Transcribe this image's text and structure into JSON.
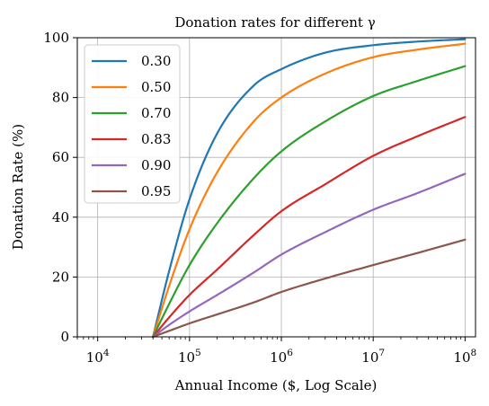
{
  "chart_data": {
    "type": "line",
    "title": "Donation rates for different γ",
    "xlabel": "Annual Income ($, Log Scale)",
    "ylabel": "Donation Rate (%)",
    "x_scale": "log",
    "xlim": [
      6000,
      130000000
    ],
    "ylim": [
      0,
      100
    ],
    "grid": true,
    "legend_position": "top-left",
    "x_ticks": [
      {
        "value": 10000,
        "base": "10",
        "exp": "4"
      },
      {
        "value": 100000,
        "base": "10",
        "exp": "5"
      },
      {
        "value": 1000000,
        "base": "10",
        "exp": "6"
      },
      {
        "value": 10000000,
        "base": "10",
        "exp": "7"
      },
      {
        "value": 100000000,
        "base": "10",
        "exp": "8"
      }
    ],
    "y_ticks": [
      0,
      20,
      40,
      60,
      80,
      100
    ],
    "y_tick_labels": [
      "0",
      "20",
      "40",
      "60",
      "80",
      "100"
    ],
    "x": [
      40000,
      60000,
      100000,
      200000,
      500000,
      1000000,
      3000000,
      10000000,
      30000000,
      100000000
    ],
    "series": [
      {
        "name": "0.30",
        "color": "#1f77b4",
        "values": [
          0,
          22,
          46,
          68,
          84,
          89.5,
          95,
          97.5,
          98.7,
          99.5
        ]
      },
      {
        "name": "0.50",
        "color": "#ff7f0e",
        "values": [
          0,
          17,
          36,
          55,
          72,
          80,
          88,
          93.5,
          96,
          98
        ]
      },
      {
        "name": "0.70",
        "color": "#2ca02c",
        "values": [
          0,
          11,
          24,
          38,
          53,
          62,
          72,
          80.5,
          85.5,
          90.5
        ]
      },
      {
        "name": "0.83",
        "color": "#d62728",
        "values": [
          0,
          6.5,
          14,
          22.5,
          34,
          42,
          51,
          60.5,
          67,
          73.5
        ]
      },
      {
        "name": "0.90",
        "color": "#9467bd",
        "values": [
          0,
          4,
          8.5,
          14,
          21.5,
          27.5,
          35,
          42.5,
          48,
          54.5
        ]
      },
      {
        "name": "0.95",
        "color": "#8c564b",
        "values": [
          0,
          2,
          4.5,
          7.5,
          11.5,
          15,
          19.5,
          24,
          28,
          32.5
        ]
      }
    ]
  }
}
